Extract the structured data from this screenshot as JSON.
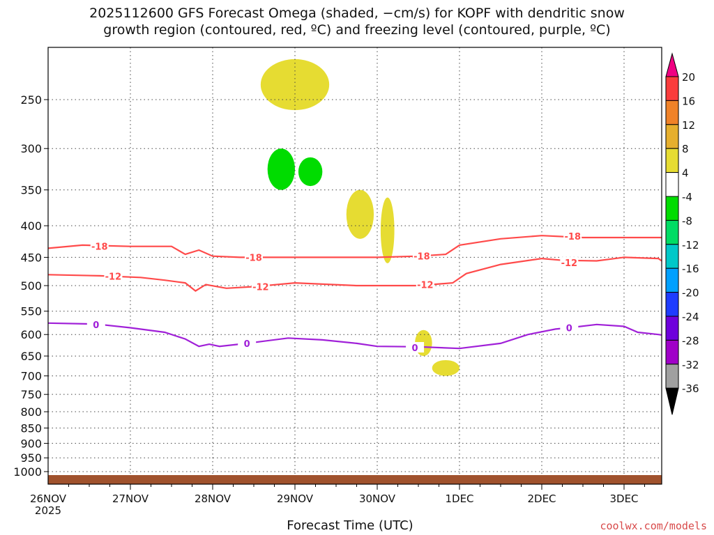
{
  "title_line1": "2025112600 GFS Forecast Omega (shaded, −cm/s) for KOPF with dendritic snow",
  "title_line2": "growth region (contoured, red, ºC) and freezing level (contoured, purple, ºC)",
  "xlabel": "Forecast Time (UTC)",
  "credit": "coolwx.com/models",
  "chart_data": {
    "type": "heatmap",
    "title": "2025112600 GFS Forecast Omega (shaded, −cm/s) for KOPF with dendritic snow growth region (contoured, red, ºC) and freezing level (contoured, purple, ºC)",
    "xlabel": "Forecast Time (UTC)",
    "ylabel": "",
    "x_ticks": [
      "26NOV",
      "27NOV",
      "28NOV",
      "29NOV",
      "30NOV",
      "1DEC",
      "2DEC",
      "3DEC"
    ],
    "x_tick_hours": [
      0,
      24,
      48,
      72,
      96,
      120,
      144,
      168
    ],
    "x_year_label": "2025",
    "xlim_hours": [
      0,
      180
    ],
    "y_ticks": [
      250,
      300,
      350,
      400,
      450,
      500,
      550,
      600,
      650,
      700,
      750,
      800,
      850,
      900,
      950,
      1000
    ],
    "ylim": [
      200,
      1020
    ],
    "y_scale": "log",
    "grid": true,
    "colorbar": {
      "levels": [
        -36,
        -32,
        -28,
        -24,
        -20,
        -16,
        -12,
        -8,
        -4,
        4,
        8,
        12,
        16,
        20
      ],
      "labels": [
        "-36",
        "-32",
        "-28",
        "-24",
        "-20",
        "-16",
        "-12",
        "-8",
        "-4",
        "4",
        "8",
        "12",
        "16",
        "20"
      ],
      "colors": [
        "#000000",
        "#a0a0a0",
        "#a000c8",
        "#6e00dc",
        "#1e3cff",
        "#00a0ff",
        "#00c8c8",
        "#00dc64",
        "#00dc00",
        "#ffffff",
        "#e6dc32",
        "#e6af2d",
        "#f08228",
        "#fa3c3c",
        "#f00082"
      ]
    },
    "contours": [
      {
        "label": "-18",
        "color": "#ff4a4a",
        "points": [
          [
            0,
            435
          ],
          [
            10,
            430
          ],
          [
            24,
            432
          ],
          [
            36,
            432
          ],
          [
            40,
            445
          ],
          [
            44,
            438
          ],
          [
            48,
            448
          ],
          [
            56,
            450
          ],
          [
            72,
            450
          ],
          [
            90,
            450
          ],
          [
            96,
            450
          ],
          [
            108,
            448
          ],
          [
            116,
            445
          ],
          [
            120,
            430
          ],
          [
            132,
            420
          ],
          [
            144,
            415
          ],
          [
            156,
            418
          ],
          [
            168,
            418
          ],
          [
            180,
            418
          ]
        ],
        "label_positions": [
          [
            15,
            432
          ],
          [
            60,
            450
          ],
          [
            109,
            448
          ],
          [
            153,
            416
          ]
        ]
      },
      {
        "label": "-12",
        "color": "#ff4a4a",
        "points": [
          [
            0,
            480
          ],
          [
            15,
            482
          ],
          [
            27,
            485
          ],
          [
            34,
            490
          ],
          [
            40,
            495
          ],
          [
            43,
            510
          ],
          [
            46,
            498
          ],
          [
            52,
            505
          ],
          [
            60,
            502
          ],
          [
            72,
            495
          ],
          [
            90,
            500
          ],
          [
            108,
            500
          ],
          [
            118,
            495
          ],
          [
            122,
            478
          ],
          [
            132,
            462
          ],
          [
            144,
            452
          ],
          [
            150,
            455
          ],
          [
            160,
            456
          ],
          [
            168,
            450
          ],
          [
            178,
            452
          ],
          [
            180,
            460
          ]
        ],
        "label_positions": [
          [
            19,
            483
          ],
          [
            62,
            502
          ],
          [
            110,
            498
          ],
          [
            152,
            459
          ]
        ]
      },
      {
        "label": "0",
        "color": "#a020d8",
        "points": [
          [
            0,
            575
          ],
          [
            14,
            577
          ],
          [
            24,
            585
          ],
          [
            34,
            595
          ],
          [
            40,
            610
          ],
          [
            44,
            627
          ],
          [
            47,
            622
          ],
          [
            50,
            627
          ],
          [
            58,
            620
          ],
          [
            70,
            608
          ],
          [
            80,
            612
          ],
          [
            90,
            620
          ],
          [
            96,
            627
          ],
          [
            108,
            628
          ],
          [
            120,
            632
          ],
          [
            132,
            620
          ],
          [
            140,
            600
          ],
          [
            148,
            588
          ],
          [
            152,
            585
          ],
          [
            160,
            578
          ],
          [
            168,
            582
          ],
          [
            172,
            595
          ],
          [
            178,
            600
          ],
          [
            180,
            602
          ]
        ],
        "label_positions": [
          [
            14,
            578
          ],
          [
            58,
            620
          ],
          [
            107,
            630
          ],
          [
            152,
            585
          ]
        ]
      }
    ],
    "omega_cells": [
      {
        "x0": 62,
        "x1": 82,
        "y0": 215,
        "y1": 260,
        "v": 4
      },
      {
        "x0": 64,
        "x1": 72,
        "y0": 300,
        "y1": 350,
        "v": -6
      },
      {
        "x0": 73,
        "x1": 80,
        "y0": 310,
        "y1": 345,
        "v": -6
      },
      {
        "x0": 87,
        "x1": 95,
        "y0": 350,
        "y1": 420,
        "v": 4
      },
      {
        "x0": 97,
        "x1": 101,
        "y0": 360,
        "y1": 460,
        "v": 4
      },
      {
        "x0": 107,
        "x1": 112,
        "y0": 590,
        "y1": 650,
        "v": 4
      },
      {
        "x0": 112,
        "x1": 120,
        "y0": 660,
        "y1": 700,
        "v": 4
      }
    ]
  }
}
